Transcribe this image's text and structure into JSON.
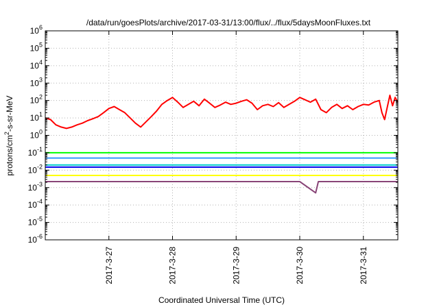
{
  "chart_data": {
    "type": "line",
    "title": "/data/run/goesPlots/archive/2017-03-31/13:00/flux/../flux/5daysMoonFluxes.txt",
    "xlabel": "Coordinated Universal Time (UTC)",
    "ylabel_parts": [
      "protons/cm",
      "2",
      "-s-sr-MeV"
    ],
    "x_ticks": [
      "2017-3-27",
      "2017-3-28",
      "2017-3-29",
      "2017-3-30",
      "2017-3-31"
    ],
    "x_range": [
      "2017-03-26 00:00",
      "2017-03-31 13:00"
    ],
    "y_scale": "log",
    "ylim": [
      1e-06,
      1000000.0
    ],
    "y_ticks": [
      {
        "base": "10",
        "exp": "-6",
        "value": 1e-06
      },
      {
        "base": "10",
        "exp": "-5",
        "value": 1e-05
      },
      {
        "base": "10",
        "exp": "-4",
        "value": 0.0001
      },
      {
        "base": "10",
        "exp": "-3",
        "value": 0.001
      },
      {
        "base": "10",
        "exp": "-2",
        "value": 0.01
      },
      {
        "base": "10",
        "exp": "-1",
        "value": 0.1
      },
      {
        "base": "10",
        "exp": "0",
        "value": 1
      },
      {
        "base": "10",
        "exp": "1",
        "value": 10
      },
      {
        "base": "10",
        "exp": "2",
        "value": 100
      },
      {
        "base": "10",
        "exp": "3",
        "value": 1000
      },
      {
        "base": "10",
        "exp": "4",
        "value": 10000
      },
      {
        "base": "10",
        "exp": "5",
        "value": 100000
      },
      {
        "base": "10",
        "exp": "6",
        "value": 1000000
      }
    ],
    "grid": true,
    "series": [
      {
        "color": "#ff0000",
        "points": [
          [
            "2017-03-26 00:00",
            10
          ],
          [
            "2017-03-26 02:00",
            8
          ],
          [
            "2017-03-26 04:00",
            4
          ],
          [
            "2017-03-26 06:00",
            3
          ],
          [
            "2017-03-26 08:00",
            2.5
          ],
          [
            "2017-03-26 10:00",
            3
          ],
          [
            "2017-03-26 12:00",
            4
          ],
          [
            "2017-03-26 14:00",
            5
          ],
          [
            "2017-03-26 16:00",
            7
          ],
          [
            "2017-03-26 18:00",
            9
          ],
          [
            "2017-03-26 20:00",
            12
          ],
          [
            "2017-03-26 22:00",
            20
          ],
          [
            "2017-03-27 00:00",
            35
          ],
          [
            "2017-03-27 02:00",
            45
          ],
          [
            "2017-03-27 04:00",
            30
          ],
          [
            "2017-03-27 06:00",
            20
          ],
          [
            "2017-03-27 08:00",
            10
          ],
          [
            "2017-03-27 10:00",
            5
          ],
          [
            "2017-03-27 12:00",
            3
          ],
          [
            "2017-03-27 14:00",
            6
          ],
          [
            "2017-03-27 16:00",
            12
          ],
          [
            "2017-03-27 18:00",
            25
          ],
          [
            "2017-03-27 20:00",
            60
          ],
          [
            "2017-03-27 22:00",
            100
          ],
          [
            "2017-03-28 00:00",
            150
          ],
          [
            "2017-03-28 02:00",
            80
          ],
          [
            "2017-03-28 04:00",
            40
          ],
          [
            "2017-03-28 06:00",
            60
          ],
          [
            "2017-03-28 08:00",
            90
          ],
          [
            "2017-03-28 10:00",
            50
          ],
          [
            "2017-03-28 12:00",
            120
          ],
          [
            "2017-03-28 14:00",
            70
          ],
          [
            "2017-03-28 16:00",
            40
          ],
          [
            "2017-03-28 18:00",
            55
          ],
          [
            "2017-03-28 20:00",
            80
          ],
          [
            "2017-03-28 22:00",
            60
          ],
          [
            "2017-03-29 00:00",
            70
          ],
          [
            "2017-03-29 02:00",
            90
          ],
          [
            "2017-03-29 04:00",
            110
          ],
          [
            "2017-03-29 06:00",
            70
          ],
          [
            "2017-03-29 08:00",
            30
          ],
          [
            "2017-03-29 10:00",
            50
          ],
          [
            "2017-03-29 12:00",
            60
          ],
          [
            "2017-03-29 14:00",
            45
          ],
          [
            "2017-03-29 16:00",
            75
          ],
          [
            "2017-03-29 18:00",
            40
          ],
          [
            "2017-03-29 20:00",
            60
          ],
          [
            "2017-03-29 22:00",
            90
          ],
          [
            "2017-03-30 00:00",
            150
          ],
          [
            "2017-03-30 02:00",
            110
          ],
          [
            "2017-03-30 04:00",
            80
          ],
          [
            "2017-03-30 06:00",
            120
          ],
          [
            "2017-03-30 08:00",
            30
          ],
          [
            "2017-03-30 10:00",
            20
          ],
          [
            "2017-03-30 12:00",
            40
          ],
          [
            "2017-03-30 14:00",
            60
          ],
          [
            "2017-03-30 16:00",
            35
          ],
          [
            "2017-03-30 18:00",
            50
          ],
          [
            "2017-03-30 20:00",
            30
          ],
          [
            "2017-03-30 22:00",
            45
          ],
          [
            "2017-03-31 00:00",
            60
          ],
          [
            "2017-03-31 02:00",
            55
          ],
          [
            "2017-03-31 04:00",
            80
          ],
          [
            "2017-03-31 06:00",
            100
          ],
          [
            "2017-03-31 07:00",
            20
          ],
          [
            "2017-03-31 08:00",
            8
          ],
          [
            "2017-03-31 09:00",
            40
          ],
          [
            "2017-03-31 10:00",
            200
          ],
          [
            "2017-03-31 11:00",
            50
          ],
          [
            "2017-03-31 12:00",
            150
          ],
          [
            "2017-03-31 13:00",
            80
          ]
        ]
      },
      {
        "color": "#00ff00",
        "points": [
          [
            "2017-03-26 00:00",
            0.1
          ],
          [
            "2017-03-26 12:00",
            0.1
          ],
          [
            "2017-03-27 00:00",
            0.1
          ],
          [
            "2017-03-27 12:00",
            0.1
          ],
          [
            "2017-03-28 00:00",
            0.1
          ],
          [
            "2017-03-28 12:00",
            0.1
          ],
          [
            "2017-03-29 00:00",
            0.1
          ],
          [
            "2017-03-29 12:00",
            0.1
          ],
          [
            "2017-03-30 00:00",
            0.1
          ],
          [
            "2017-03-30 12:00",
            0.1
          ],
          [
            "2017-03-31 00:00",
            0.1
          ],
          [
            "2017-03-31 13:00",
            0.1
          ]
        ]
      },
      {
        "color": "#3399ff",
        "points": [
          [
            "2017-03-26 00:00",
            0.05
          ],
          [
            "2017-03-26 12:00",
            0.05
          ],
          [
            "2017-03-27 00:00",
            0.05
          ],
          [
            "2017-03-27 12:00",
            0.05
          ],
          [
            "2017-03-28 00:00",
            0.05
          ],
          [
            "2017-03-28 12:00",
            0.05
          ],
          [
            "2017-03-29 00:00",
            0.05
          ],
          [
            "2017-03-29 12:00",
            0.05
          ],
          [
            "2017-03-30 00:00",
            0.05
          ],
          [
            "2017-03-30 12:00",
            0.05
          ],
          [
            "2017-03-31 00:00",
            0.05
          ],
          [
            "2017-03-31 13:00",
            0.05
          ]
        ]
      },
      {
        "color": "#00cccc",
        "points": [
          [
            "2017-03-26 00:00",
            0.02
          ],
          [
            "2017-03-26 12:00",
            0.02
          ],
          [
            "2017-03-27 00:00",
            0.02
          ],
          [
            "2017-03-27 12:00",
            0.02
          ],
          [
            "2017-03-28 00:00",
            0.02
          ],
          [
            "2017-03-28 12:00",
            0.02
          ],
          [
            "2017-03-29 00:00",
            0.02
          ],
          [
            "2017-03-29 12:00",
            0.02
          ],
          [
            "2017-03-30 00:00",
            0.02
          ],
          [
            "2017-03-30 12:00",
            0.02
          ],
          [
            "2017-03-31 00:00",
            0.02
          ],
          [
            "2017-03-31 13:00",
            0.02
          ]
        ]
      },
      {
        "color": "#0000ee",
        "points": [
          [
            "2017-03-26 00:00",
            0.015
          ],
          [
            "2017-03-26 12:00",
            0.015
          ],
          [
            "2017-03-27 00:00",
            0.015
          ],
          [
            "2017-03-27 12:00",
            0.015
          ],
          [
            "2017-03-28 00:00",
            0.015
          ],
          [
            "2017-03-28 12:00",
            0.015
          ],
          [
            "2017-03-29 00:00",
            0.015
          ],
          [
            "2017-03-29 12:00",
            0.015
          ],
          [
            "2017-03-30 00:00",
            0.015
          ],
          [
            "2017-03-30 12:00",
            0.015
          ],
          [
            "2017-03-31 00:00",
            0.015
          ],
          [
            "2017-03-31 13:00",
            0.015
          ]
        ]
      },
      {
        "color": "#ffff00",
        "points": [
          [
            "2017-03-26 00:00",
            0.005
          ],
          [
            "2017-03-26 12:00",
            0.005
          ],
          [
            "2017-03-27 00:00",
            0.005
          ],
          [
            "2017-03-27 12:00",
            0.005
          ],
          [
            "2017-03-28 00:00",
            0.005
          ],
          [
            "2017-03-28 12:00",
            0.005
          ],
          [
            "2017-03-29 00:00",
            0.005
          ],
          [
            "2017-03-29 12:00",
            0.005
          ],
          [
            "2017-03-30 00:00",
            0.005
          ],
          [
            "2017-03-30 12:00",
            0.005
          ],
          [
            "2017-03-31 00:00",
            0.005
          ],
          [
            "2017-03-31 13:00",
            0.005
          ]
        ]
      },
      {
        "color": "#884477",
        "points": [
          [
            "2017-03-26 00:00",
            0.0022
          ],
          [
            "2017-03-26 12:00",
            0.0022
          ],
          [
            "2017-03-27 00:00",
            0.0022
          ],
          [
            "2017-03-27 12:00",
            0.0022
          ],
          [
            "2017-03-28 00:00",
            0.0022
          ],
          [
            "2017-03-28 12:00",
            0.0022
          ],
          [
            "2017-03-29 00:00",
            0.0022
          ],
          [
            "2017-03-29 12:00",
            0.0022
          ],
          [
            "2017-03-30 00:00",
            0.0022
          ],
          [
            "2017-03-30 06:00",
            0.0005
          ],
          [
            "2017-03-30 07:00",
            0.0022
          ],
          [
            "2017-03-30 12:00",
            0.0022
          ],
          [
            "2017-03-31 00:00",
            0.0022
          ],
          [
            "2017-03-31 13:00",
            0.0022
          ]
        ]
      }
    ]
  }
}
